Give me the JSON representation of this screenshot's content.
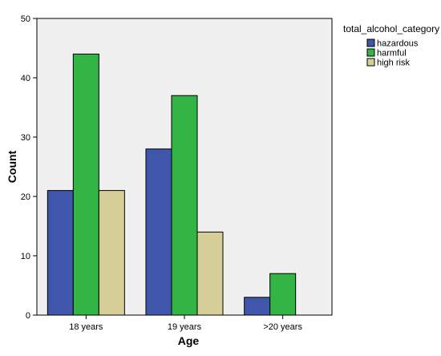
{
  "chart_data": {
    "type": "bar",
    "categories": [
      "18 years",
      "19 years",
      ">20 years"
    ],
    "series": [
      {
        "name": "hazardous",
        "values": [
          21,
          28,
          3
        ],
        "color": "#3f56ab"
      },
      {
        "name": "harmful",
        "values": [
          44,
          37,
          7
        ],
        "color": "#33b545"
      },
      {
        "name": "high risk",
        "values": [
          21,
          14,
          0
        ],
        "color": "#d5cf97"
      }
    ],
    "xlabel": "Age",
    "ylabel": "Count",
    "ylim": [
      0,
      50
    ],
    "yticks": [
      0,
      10,
      20,
      30,
      40,
      50
    ],
    "legend_title": "total_alcohol_category",
    "legend_position": "top-right",
    "plot_background": "#f0f0f0",
    "grid": false
  }
}
